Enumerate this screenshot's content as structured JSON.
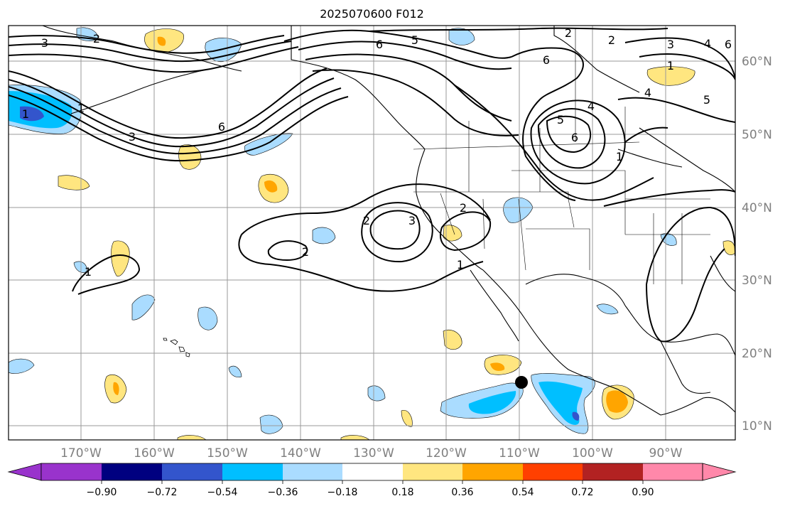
{
  "title": "2025070600 F012",
  "map": {
    "longitude_labels": [
      "170°W",
      "160°W",
      "150°W",
      "140°W",
      "130°W",
      "120°W",
      "110°W",
      "100°W",
      "90°W"
    ],
    "latitude_labels": [
      "60°N",
      "50°N",
      "40°N",
      "30°N",
      "20°N",
      "10°N"
    ],
    "contour_labels": [
      "3",
      "2",
      "6",
      "5",
      "2",
      "2",
      "6",
      "3",
      "1",
      "4",
      "5",
      "6",
      "1",
      "4",
      "5",
      "6",
      "6",
      "3",
      "1",
      "3",
      "2",
      "1",
      "2",
      "2",
      "1",
      "1",
      "4"
    ]
  },
  "colorbar": {
    "ticks": [
      "−0.90",
      "−0.72",
      "−0.54",
      "−0.36",
      "−0.18",
      "0.18",
      "0.36",
      "0.54",
      "0.72",
      "0.90"
    ],
    "colors": {
      "under": "#9933cc",
      "bins": [
        "#000080",
        "#3355cc",
        "#00bfff",
        "#aadcff",
        "#ffffff",
        "#ffe680",
        "#ffa500",
        "#ff4000",
        "#b22222"
      ],
      "over": "#ff88aa"
    }
  },
  "palette": {
    "pos1": "#ffe680",
    "pos2": "#ffa500",
    "neg1": "#aadcff",
    "neg2": "#00bfff",
    "neg3": "#3355cc",
    "grid": "#9a9a9a",
    "contour": "#000000",
    "coast": "#000000"
  }
}
